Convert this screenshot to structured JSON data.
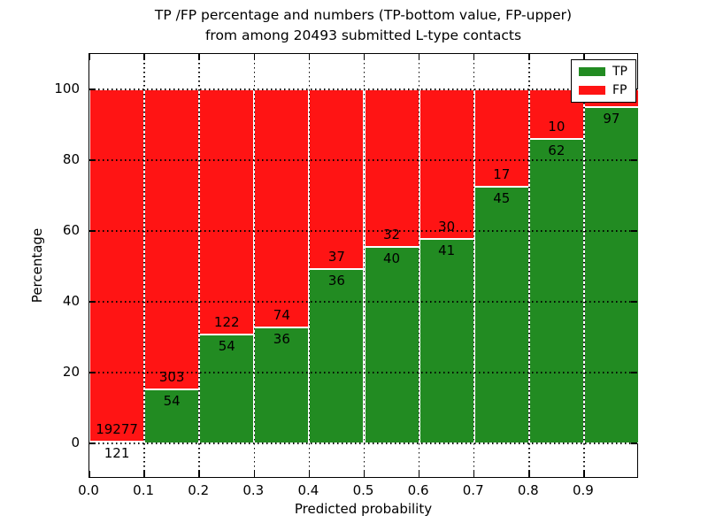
{
  "chart_data": {
    "type": "bar",
    "stacked": true,
    "title_line1": "TP /FP percentage and numbers (TP-bottom value, FP-upper)",
    "title_line2": "from among 20493 submitted L-type contacts",
    "xlabel": "Predicted probability",
    "ylabel": "Percentage",
    "total_submitted": 20493,
    "xlim": [
      0.0,
      1.0
    ],
    "ylim": [
      -10,
      110
    ],
    "grid": "dotted, drawn over bars",
    "legend_position": "upper right",
    "x_tick_labels": [
      "0.0",
      "0.1",
      "0.2",
      "0.3",
      "0.4",
      "0.5",
      "0.6",
      "0.7",
      "0.8",
      "0.9"
    ],
    "x_tick_values": [
      0.0,
      0.1,
      0.2,
      0.3,
      0.4,
      0.5,
      0.6,
      0.7,
      0.8,
      0.9
    ],
    "y_tick_labels": [
      "0",
      "20",
      "40",
      "60",
      "80",
      "100"
    ],
    "y_tick_values": [
      0,
      20,
      40,
      60,
      80,
      100
    ],
    "series": [
      {
        "name": "TP",
        "color": "#228B22"
      },
      {
        "name": "FP",
        "color": "#FF1414"
      }
    ],
    "bars": [
      {
        "x0": 0.0,
        "x1": 0.1,
        "tp": 121,
        "fp": 19277,
        "tp_pct": 0.62
      },
      {
        "x0": 0.1,
        "x1": 0.2,
        "tp": 54,
        "fp": 303,
        "tp_pct": 15.13
      },
      {
        "x0": 0.2,
        "x1": 0.3,
        "tp": 54,
        "fp": 122,
        "tp_pct": 30.68
      },
      {
        "x0": 0.3,
        "x1": 0.4,
        "tp": 36,
        "fp": 74,
        "tp_pct": 32.73
      },
      {
        "x0": 0.4,
        "x1": 0.5,
        "tp": 36,
        "fp": 37,
        "tp_pct": 49.32
      },
      {
        "x0": 0.5,
        "x1": 0.6,
        "tp": 40,
        "fp": 32,
        "tp_pct": 55.56
      },
      {
        "x0": 0.6,
        "x1": 0.7,
        "tp": 41,
        "fp": 30,
        "tp_pct": 57.75
      },
      {
        "x0": 0.7,
        "x1": 0.8,
        "tp": 45,
        "fp": 17,
        "tp_pct": 72.58
      },
      {
        "x0": 0.8,
        "x1": 0.9,
        "tp": 62,
        "fp": 10,
        "tp_pct": 86.11
      },
      {
        "x0": 0.9,
        "x1": 1.0,
        "tp": 97,
        "fp": null,
        "tp_pct": 95.1,
        "fp_label_hidden_by_legend": true
      }
    ],
    "legend": [
      {
        "label": "TP",
        "color": "#228B22"
      },
      {
        "label": "FP",
        "color": "#FF1414"
      }
    ]
  }
}
